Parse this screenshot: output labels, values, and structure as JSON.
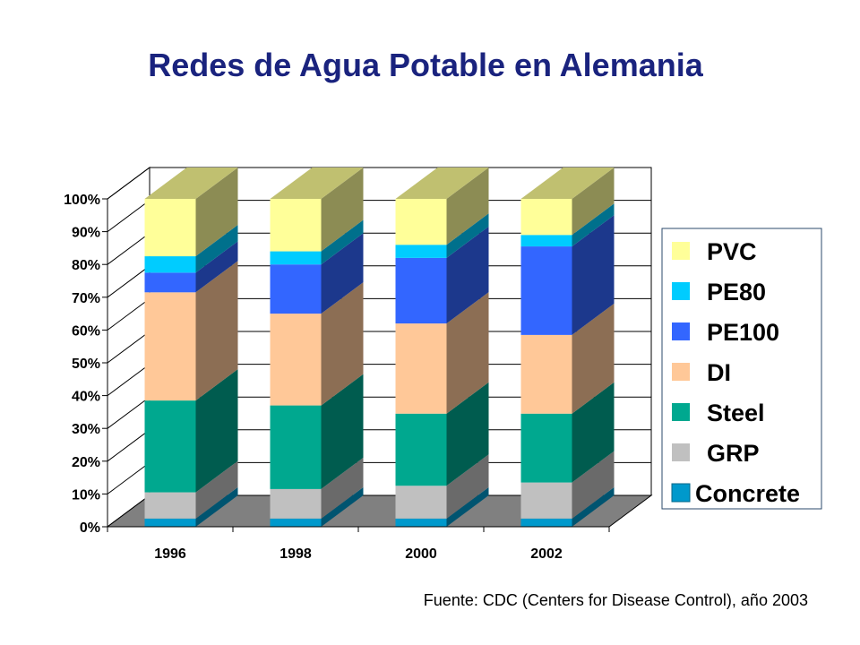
{
  "source_note": "Fuente: CDC (Centers for Disease Control), año 2003",
  "chart_data": {
    "type": "bar",
    "stacked": true,
    "percent": true,
    "three_d": true,
    "title": "Redes de Agua Potable en Alemania",
    "xlabel": "",
    "ylabel": "",
    "categories": [
      "1996",
      "1998",
      "2000",
      "2002"
    ],
    "ylim": [
      0,
      100
    ],
    "yticks": [
      "0%",
      "10%",
      "20%",
      "30%",
      "40%",
      "50%",
      "60%",
      "70%",
      "80%",
      "90%",
      "100%"
    ],
    "grid": true,
    "legend_position": "right",
    "series": [
      {
        "name": "Concrete",
        "color": "#0099cc",
        "values": [
          2.5,
          2.5,
          2.5,
          2.5
        ]
      },
      {
        "name": "GRP",
        "color": "#c0c0c0",
        "values": [
          8,
          9,
          10,
          11
        ]
      },
      {
        "name": "Steel",
        "color": "#00a88f",
        "values": [
          28,
          25.5,
          22,
          21
        ]
      },
      {
        "name": "DI",
        "color": "#ffc898",
        "values": [
          33,
          28,
          27.5,
          24
        ]
      },
      {
        "name": "PE100",
        "color": "#3366ff",
        "values": [
          6,
          15,
          20,
          27
        ]
      },
      {
        "name": "PE80",
        "color": "#00ccff",
        "values": [
          5,
          4,
          4,
          3.5
        ]
      },
      {
        "name": "PVC",
        "color": "#ffff99",
        "values": [
          17.5,
          16,
          14,
          11
        ]
      }
    ],
    "legend_order": [
      "PVC",
      "PE80",
      "PE100",
      "DI",
      "Steel",
      "GRP",
      "Concrete"
    ]
  }
}
